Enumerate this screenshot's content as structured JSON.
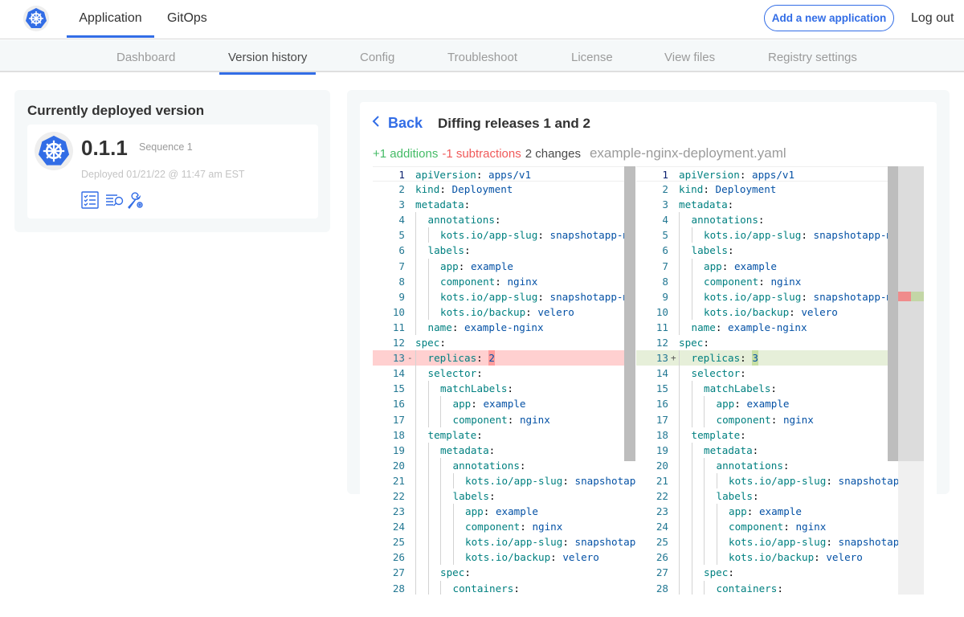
{
  "nav": {
    "tabs": [
      {
        "label": "Application",
        "active": true
      },
      {
        "label": "GitOps"
      }
    ],
    "add_button": "Add a new application",
    "logout": "Log out",
    "logo_icon": "kubernetes-helm-icon"
  },
  "subnav": {
    "tabs": [
      {
        "label": "Dashboard"
      },
      {
        "label": "Version history",
        "active": true
      },
      {
        "label": "Config"
      },
      {
        "label": "Troubleshoot"
      },
      {
        "label": "License"
      },
      {
        "label": "View files"
      },
      {
        "label": "Registry settings"
      }
    ]
  },
  "deployed": {
    "title": "Currently deployed version",
    "version": "0.1.1",
    "sequence": "Sequence 1",
    "deployed_at": "Deployed 01/21/22 @ 11:47 am EST",
    "icons": [
      "checklist-icon",
      "logs-search-icon",
      "troubleshoot-wrench-gear-icon"
    ]
  },
  "diff": {
    "back": "Back",
    "title": "Diffing releases 1 and 2",
    "additions": "+1 additions",
    "subtractions": "-1 subtractions",
    "changes": "2 changes",
    "filename": "example-nginx-deployment.yaml",
    "colors": {
      "accent": "#326de6",
      "addition": "#44bb66",
      "subtraction": "#f05a5a",
      "deleted_line": "#ffd0d0",
      "inserted_line": "#e6efd9"
    },
    "changed_line": 13,
    "left": [
      [
        0,
        "apiVersion",
        "apps/v1"
      ],
      [
        0,
        "kind",
        "Deployment"
      ],
      [
        0,
        "metadata",
        ""
      ],
      [
        1,
        "annotations",
        ""
      ],
      [
        2,
        "kots.io/app-slug",
        "snapshotapp-mu"
      ],
      [
        1,
        "labels",
        ""
      ],
      [
        2,
        "app",
        "example"
      ],
      [
        2,
        "component",
        "nginx"
      ],
      [
        2,
        "kots.io/app-slug",
        "snapshotapp-mu"
      ],
      [
        2,
        "kots.io/backup",
        "velero"
      ],
      [
        1,
        "name",
        "example-nginx"
      ],
      [
        0,
        "spec",
        ""
      ],
      [
        1,
        "replicas",
        "2"
      ],
      [
        1,
        "selector",
        ""
      ],
      [
        2,
        "matchLabels",
        ""
      ],
      [
        3,
        "app",
        "example"
      ],
      [
        3,
        "component",
        "nginx"
      ],
      [
        1,
        "template",
        ""
      ],
      [
        2,
        "metadata",
        ""
      ],
      [
        3,
        "annotations",
        ""
      ],
      [
        4,
        "kots.io/app-slug",
        "snapshotap"
      ],
      [
        3,
        "labels",
        ""
      ],
      [
        4,
        "app",
        "example"
      ],
      [
        4,
        "component",
        "nginx"
      ],
      [
        4,
        "kots.io/app-slug",
        "snapshotap"
      ],
      [
        4,
        "kots.io/backup",
        "velero"
      ],
      [
        2,
        "spec",
        ""
      ],
      [
        3,
        "containers",
        ""
      ]
    ],
    "right": [
      [
        0,
        "apiVersion",
        "apps/v1"
      ],
      [
        0,
        "kind",
        "Deployment"
      ],
      [
        0,
        "metadata",
        ""
      ],
      [
        1,
        "annotations",
        ""
      ],
      [
        2,
        "kots.io/app-slug",
        "snapshotapp-mu"
      ],
      [
        1,
        "labels",
        ""
      ],
      [
        2,
        "app",
        "example"
      ],
      [
        2,
        "component",
        "nginx"
      ],
      [
        2,
        "kots.io/app-slug",
        "snapshotapp-mu"
      ],
      [
        2,
        "kots.io/backup",
        "velero"
      ],
      [
        1,
        "name",
        "example-nginx"
      ],
      [
        0,
        "spec",
        ""
      ],
      [
        1,
        "replicas",
        "3"
      ],
      [
        1,
        "selector",
        ""
      ],
      [
        2,
        "matchLabels",
        ""
      ],
      [
        3,
        "app",
        "example"
      ],
      [
        3,
        "component",
        "nginx"
      ],
      [
        1,
        "template",
        ""
      ],
      [
        2,
        "metadata",
        ""
      ],
      [
        3,
        "annotations",
        ""
      ],
      [
        4,
        "kots.io/app-slug",
        "snapshotap"
      ],
      [
        3,
        "labels",
        ""
      ],
      [
        4,
        "app",
        "example"
      ],
      [
        4,
        "component",
        "nginx"
      ],
      [
        4,
        "kots.io/app-slug",
        "snapshotap"
      ],
      [
        4,
        "kots.io/backup",
        "velero"
      ],
      [
        2,
        "spec",
        ""
      ],
      [
        3,
        "containers",
        ""
      ]
    ]
  }
}
